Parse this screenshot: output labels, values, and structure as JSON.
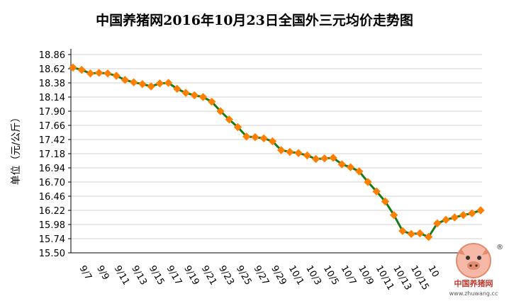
{
  "chart_data": {
    "type": "line",
    "title": "中国养猪网2016年10月23日全国外三元均价走势图",
    "ylabel": "单位（元/公斤）",
    "xlabel": "",
    "ylim": [
      15.5,
      18.86
    ],
    "yticks": [
      "18.86",
      "18.62",
      "18.38",
      "18.14",
      "17.90",
      "17.66",
      "17.42",
      "17.18",
      "16.94",
      "16.70",
      "16.46",
      "16.22",
      "15.98",
      "15.74",
      "15.50"
    ],
    "x_tick_labels": [
      "9/7",
      "9/9",
      "9/11",
      "9/13",
      "9/15",
      "9/17",
      "9/19",
      "9/21",
      "9/23",
      "9/25",
      "9/27",
      "9/29",
      "10/1",
      "10/3",
      "10/5",
      "10/7",
      "10/9",
      "10/11",
      "10/13",
      "10/15",
      "10"
    ],
    "line_color": "#1a7a1a",
    "marker_color": "#ff7f00",
    "grid": true,
    "series": [
      {
        "values": [
          18.64,
          18.6,
          18.54,
          18.55,
          18.54,
          18.5,
          18.43,
          18.39,
          18.36,
          18.32,
          18.37,
          18.38,
          18.28,
          18.21,
          18.17,
          18.14,
          18.06,
          17.9,
          17.76,
          17.63,
          17.47,
          17.46,
          17.44,
          17.39,
          17.24,
          17.21,
          17.19,
          17.15,
          17.09,
          17.1,
          17.11,
          17.0,
          16.95,
          16.88,
          16.7,
          16.54,
          16.37,
          16.14,
          15.87,
          15.82,
          15.83,
          15.77,
          16.0,
          16.06,
          16.1,
          16.14,
          16.17,
          16.22
        ]
      }
    ]
  },
  "watermark": {
    "text": "中国养猪网",
    "url": "www.zhuwang.cc",
    "registered_mark": "®"
  }
}
